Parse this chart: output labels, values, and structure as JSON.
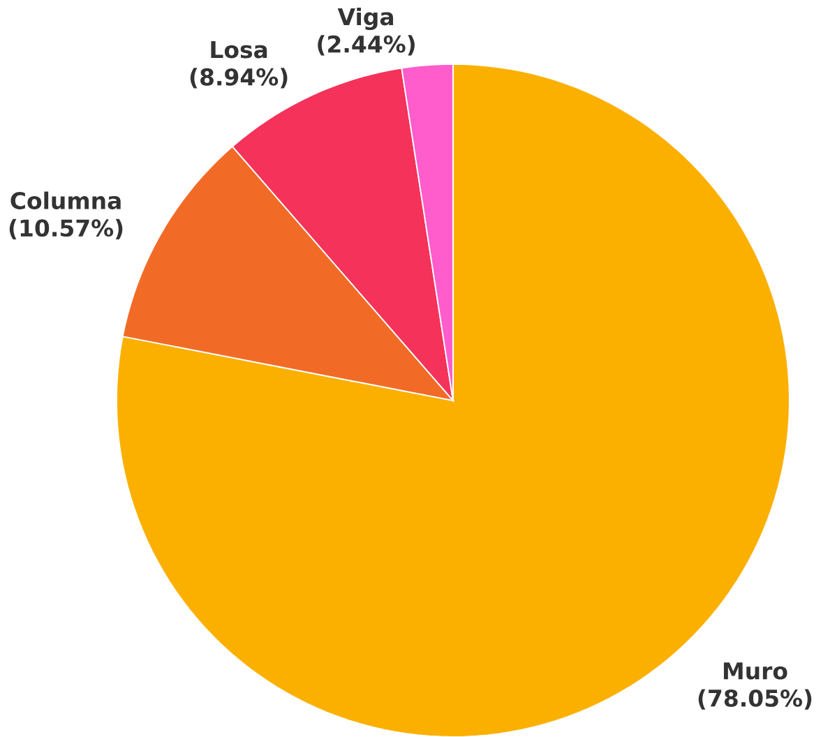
{
  "chart_data": {
    "type": "pie",
    "categories": [
      "Muro",
      "Columna",
      "Losa",
      "Viga"
    ],
    "values": [
      78.05,
      10.57,
      8.94,
      2.44
    ],
    "value_labels": [
      "(78.05%)",
      "(10.57%)",
      "(8.94%)",
      "(2.44%)"
    ],
    "colors": [
      "#fbb000",
      "#f26b26",
      "#f5325a",
      "#ff5ccc"
    ]
  }
}
